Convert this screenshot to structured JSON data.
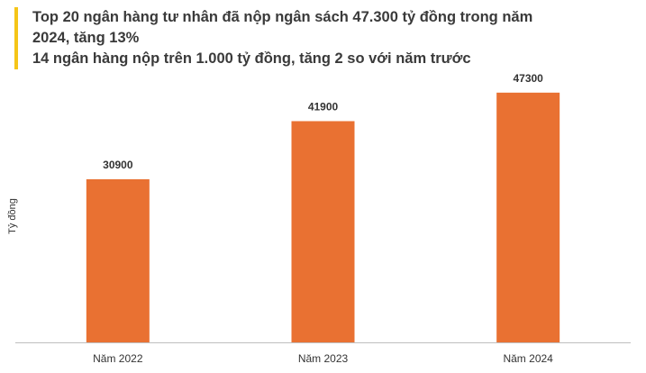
{
  "chart_data": {
    "type": "bar",
    "title": "Top 20 ngân hàng tư nhân đã nộp ngân sách 47.300 tỷ  đồng trong năm 2024, tăng 13%",
    "subtitle": "14 ngân hàng nộp trên 1.000 tỷ đồng, tăng 2 so với năm trước",
    "y_label": "Tỷ đồng",
    "categories": [
      "Năm 2022",
      "Năm 2023",
      "Năm 2024"
    ],
    "values": [
      30900,
      41900,
      47300
    ],
    "color": "#e97132",
    "ylim": [
      0,
      50000
    ]
  }
}
